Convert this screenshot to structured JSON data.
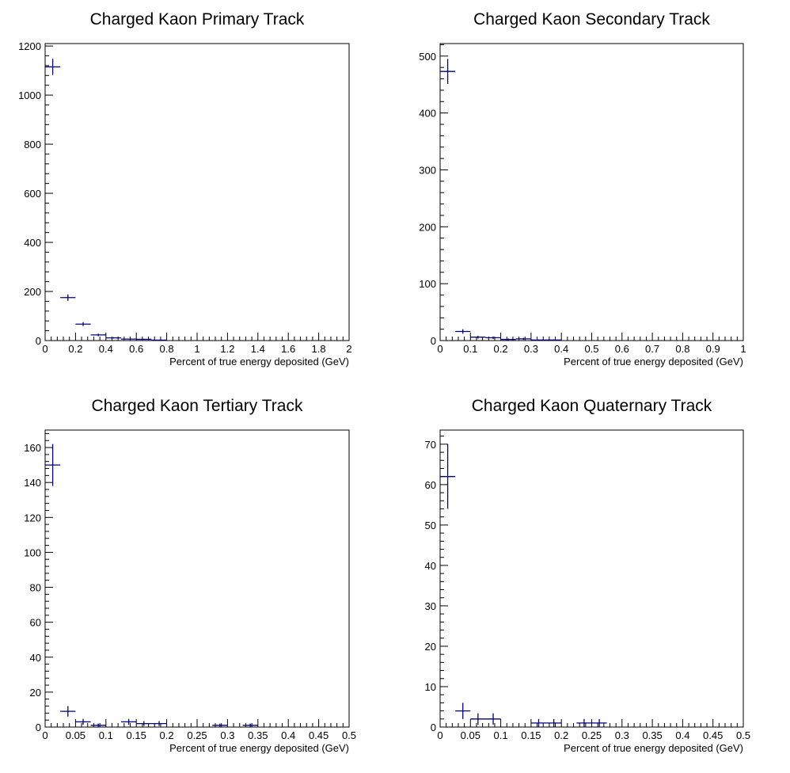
{
  "colors": {
    "marker": "#000080",
    "axis": "#000000",
    "background": "#ffffff"
  },
  "chart_data": [
    {
      "type": "histogram",
      "title": "Charged Kaon Primary Track",
      "xlabel": "Percent of true energy deposited (GeV)",
      "ylabel": "",
      "xlim": [
        0,
        2
      ],
      "ylim": [
        0,
        1210
      ],
      "x_ticks": [
        0,
        0.2,
        0.4,
        0.6,
        0.8,
        1,
        1.2,
        1.4,
        1.6,
        1.8,
        2
      ],
      "x_tick_labels": [
        "0",
        "0.2",
        "0.4",
        "0.6",
        "0.8",
        "1",
        "1.2",
        "1.4",
        "1.6",
        "1.8",
        "2"
      ],
      "y_ticks": [
        0,
        200,
        400,
        600,
        800,
        1000,
        1200
      ],
      "y_tick_labels": [
        "0",
        "200",
        "400",
        "600",
        "800",
        "1000",
        "1200"
      ],
      "grid": false,
      "points": [
        {
          "x": 0.05,
          "xerr": 0.05,
          "y": 1115,
          "yerr": 33
        },
        {
          "x": 0.15,
          "xerr": 0.05,
          "y": 175,
          "yerr": 13
        },
        {
          "x": 0.25,
          "xerr": 0.05,
          "y": 67,
          "yerr": 8
        },
        {
          "x": 0.35,
          "xerr": 0.05,
          "y": 23,
          "yerr": 5
        },
        {
          "x": 0.45,
          "xerr": 0.05,
          "y": 11,
          "yerr": 3
        },
        {
          "x": 0.55,
          "xerr": 0.05,
          "y": 6,
          "yerr": 2
        },
        {
          "x": 0.65,
          "xerr": 0.05,
          "y": 5,
          "yerr": 2
        },
        {
          "x": 0.75,
          "xerr": 0.05,
          "y": 2,
          "yerr": 1
        }
      ]
    },
    {
      "type": "histogram",
      "title": "Charged Kaon Secondary Track",
      "xlabel": "Percent of true energy deposited (GeV)",
      "ylabel": "",
      "xlim": [
        0,
        1
      ],
      "ylim": [
        0,
        522
      ],
      "x_ticks": [
        0,
        0.1,
        0.2,
        0.3,
        0.4,
        0.5,
        0.6,
        0.7,
        0.8,
        0.9,
        1
      ],
      "x_tick_labels": [
        "0",
        "0.1",
        "0.2",
        "0.3",
        "0.4",
        "0.5",
        "0.6",
        "0.7",
        "0.8",
        "0.9",
        "1"
      ],
      "y_ticks": [
        0,
        100,
        200,
        300,
        400,
        500
      ],
      "y_tick_labels": [
        "0",
        "100",
        "200",
        "300",
        "400",
        "500"
      ],
      "grid": false,
      "points": [
        {
          "x": 0.025,
          "xerr": 0.025,
          "y": 473,
          "yerr": 22
        },
        {
          "x": 0.075,
          "xerr": 0.025,
          "y": 16,
          "yerr": 4
        },
        {
          "x": 0.125,
          "xerr": 0.025,
          "y": 6,
          "yerr": 2.5
        },
        {
          "x": 0.175,
          "xerr": 0.025,
          "y": 5,
          "yerr": 2.2
        },
        {
          "x": 0.225,
          "xerr": 0.025,
          "y": 2,
          "yerr": 1.4
        },
        {
          "x": 0.275,
          "xerr": 0.025,
          "y": 3,
          "yerr": 1.7
        },
        {
          "x": 0.325,
          "xerr": 0.025,
          "y": 1,
          "yerr": 1
        },
        {
          "x": 0.375,
          "xerr": 0.025,
          "y": 1,
          "yerr": 1
        }
      ]
    },
    {
      "type": "histogram",
      "title": "Charged Kaon Tertiary Track",
      "xlabel": "Percent of true energy deposited (GeV)",
      "ylabel": "",
      "xlim": [
        0,
        0.5
      ],
      "ylim": [
        0,
        170
      ],
      "x_ticks": [
        0,
        0.05,
        0.1,
        0.15,
        0.2,
        0.25,
        0.3,
        0.35,
        0.4,
        0.45,
        0.5
      ],
      "x_tick_labels": [
        "0",
        "0.05",
        "0.1",
        "0.15",
        "0.2",
        "0.25",
        "0.3",
        "0.35",
        "0.4",
        "0.45",
        "0.5"
      ],
      "y_ticks": [
        0,
        20,
        40,
        60,
        80,
        100,
        120,
        140,
        160
      ],
      "y_tick_labels": [
        "0",
        "20",
        "40",
        "60",
        "80",
        "100",
        "120",
        "140",
        "160"
      ],
      "grid": false,
      "points": [
        {
          "x": 0.0125,
          "xerr": 0.0125,
          "y": 150,
          "yerr": 12
        },
        {
          "x": 0.0375,
          "xerr": 0.0125,
          "y": 9,
          "yerr": 3
        },
        {
          "x": 0.0625,
          "xerr": 0.0125,
          "y": 3,
          "yerr": 1.7
        },
        {
          "x": 0.0875,
          "xerr": 0.0125,
          "y": 1,
          "yerr": 1
        },
        {
          "x": 0.1375,
          "xerr": 0.0125,
          "y": 3,
          "yerr": 1.7
        },
        {
          "x": 0.1625,
          "xerr": 0.0125,
          "y": 2,
          "yerr": 1.4
        },
        {
          "x": 0.1875,
          "xerr": 0.0125,
          "y": 2,
          "yerr": 1.4
        },
        {
          "x": 0.2875,
          "xerr": 0.0125,
          "y": 1,
          "yerr": 1
        },
        {
          "x": 0.3375,
          "xerr": 0.0125,
          "y": 1,
          "yerr": 1
        }
      ]
    },
    {
      "type": "histogram",
      "title": "Charged Kaon Quaternary Track",
      "xlabel": "Percent of true energy deposited (GeV)",
      "ylabel": "",
      "xlim": [
        0,
        0.5
      ],
      "ylim": [
        0,
        73.5
      ],
      "x_ticks": [
        0,
        0.05,
        0.1,
        0.15,
        0.2,
        0.25,
        0.3,
        0.35,
        0.4,
        0.45,
        0.5
      ],
      "x_tick_labels": [
        "0",
        "0.05",
        "0.1",
        "0.15",
        "0.2",
        "0.25",
        "0.3",
        "0.35",
        "0.4",
        "0.45",
        "0.5"
      ],
      "y_ticks": [
        0,
        10,
        20,
        30,
        40,
        50,
        60,
        70
      ],
      "y_tick_labels": [
        "0",
        "10",
        "20",
        "30",
        "40",
        "50",
        "60",
        "70"
      ],
      "grid": false,
      "points": [
        {
          "x": 0.0125,
          "xerr": 0.0125,
          "y": 62,
          "yerr": 8
        },
        {
          "x": 0.0375,
          "xerr": 0.0125,
          "y": 4,
          "yerr": 2
        },
        {
          "x": 0.0625,
          "xerr": 0.0125,
          "y": 2,
          "yerr": 1.4
        },
        {
          "x": 0.0875,
          "xerr": 0.0125,
          "y": 2,
          "yerr": 1.4
        },
        {
          "x": 0.1625,
          "xerr": 0.0125,
          "y": 1,
          "yerr": 1
        },
        {
          "x": 0.1875,
          "xerr": 0.0125,
          "y": 1,
          "yerr": 1
        },
        {
          "x": 0.2375,
          "xerr": 0.0125,
          "y": 1,
          "yerr": 1
        },
        {
          "x": 0.2625,
          "xerr": 0.0125,
          "y": 1,
          "yerr": 1
        }
      ]
    }
  ]
}
